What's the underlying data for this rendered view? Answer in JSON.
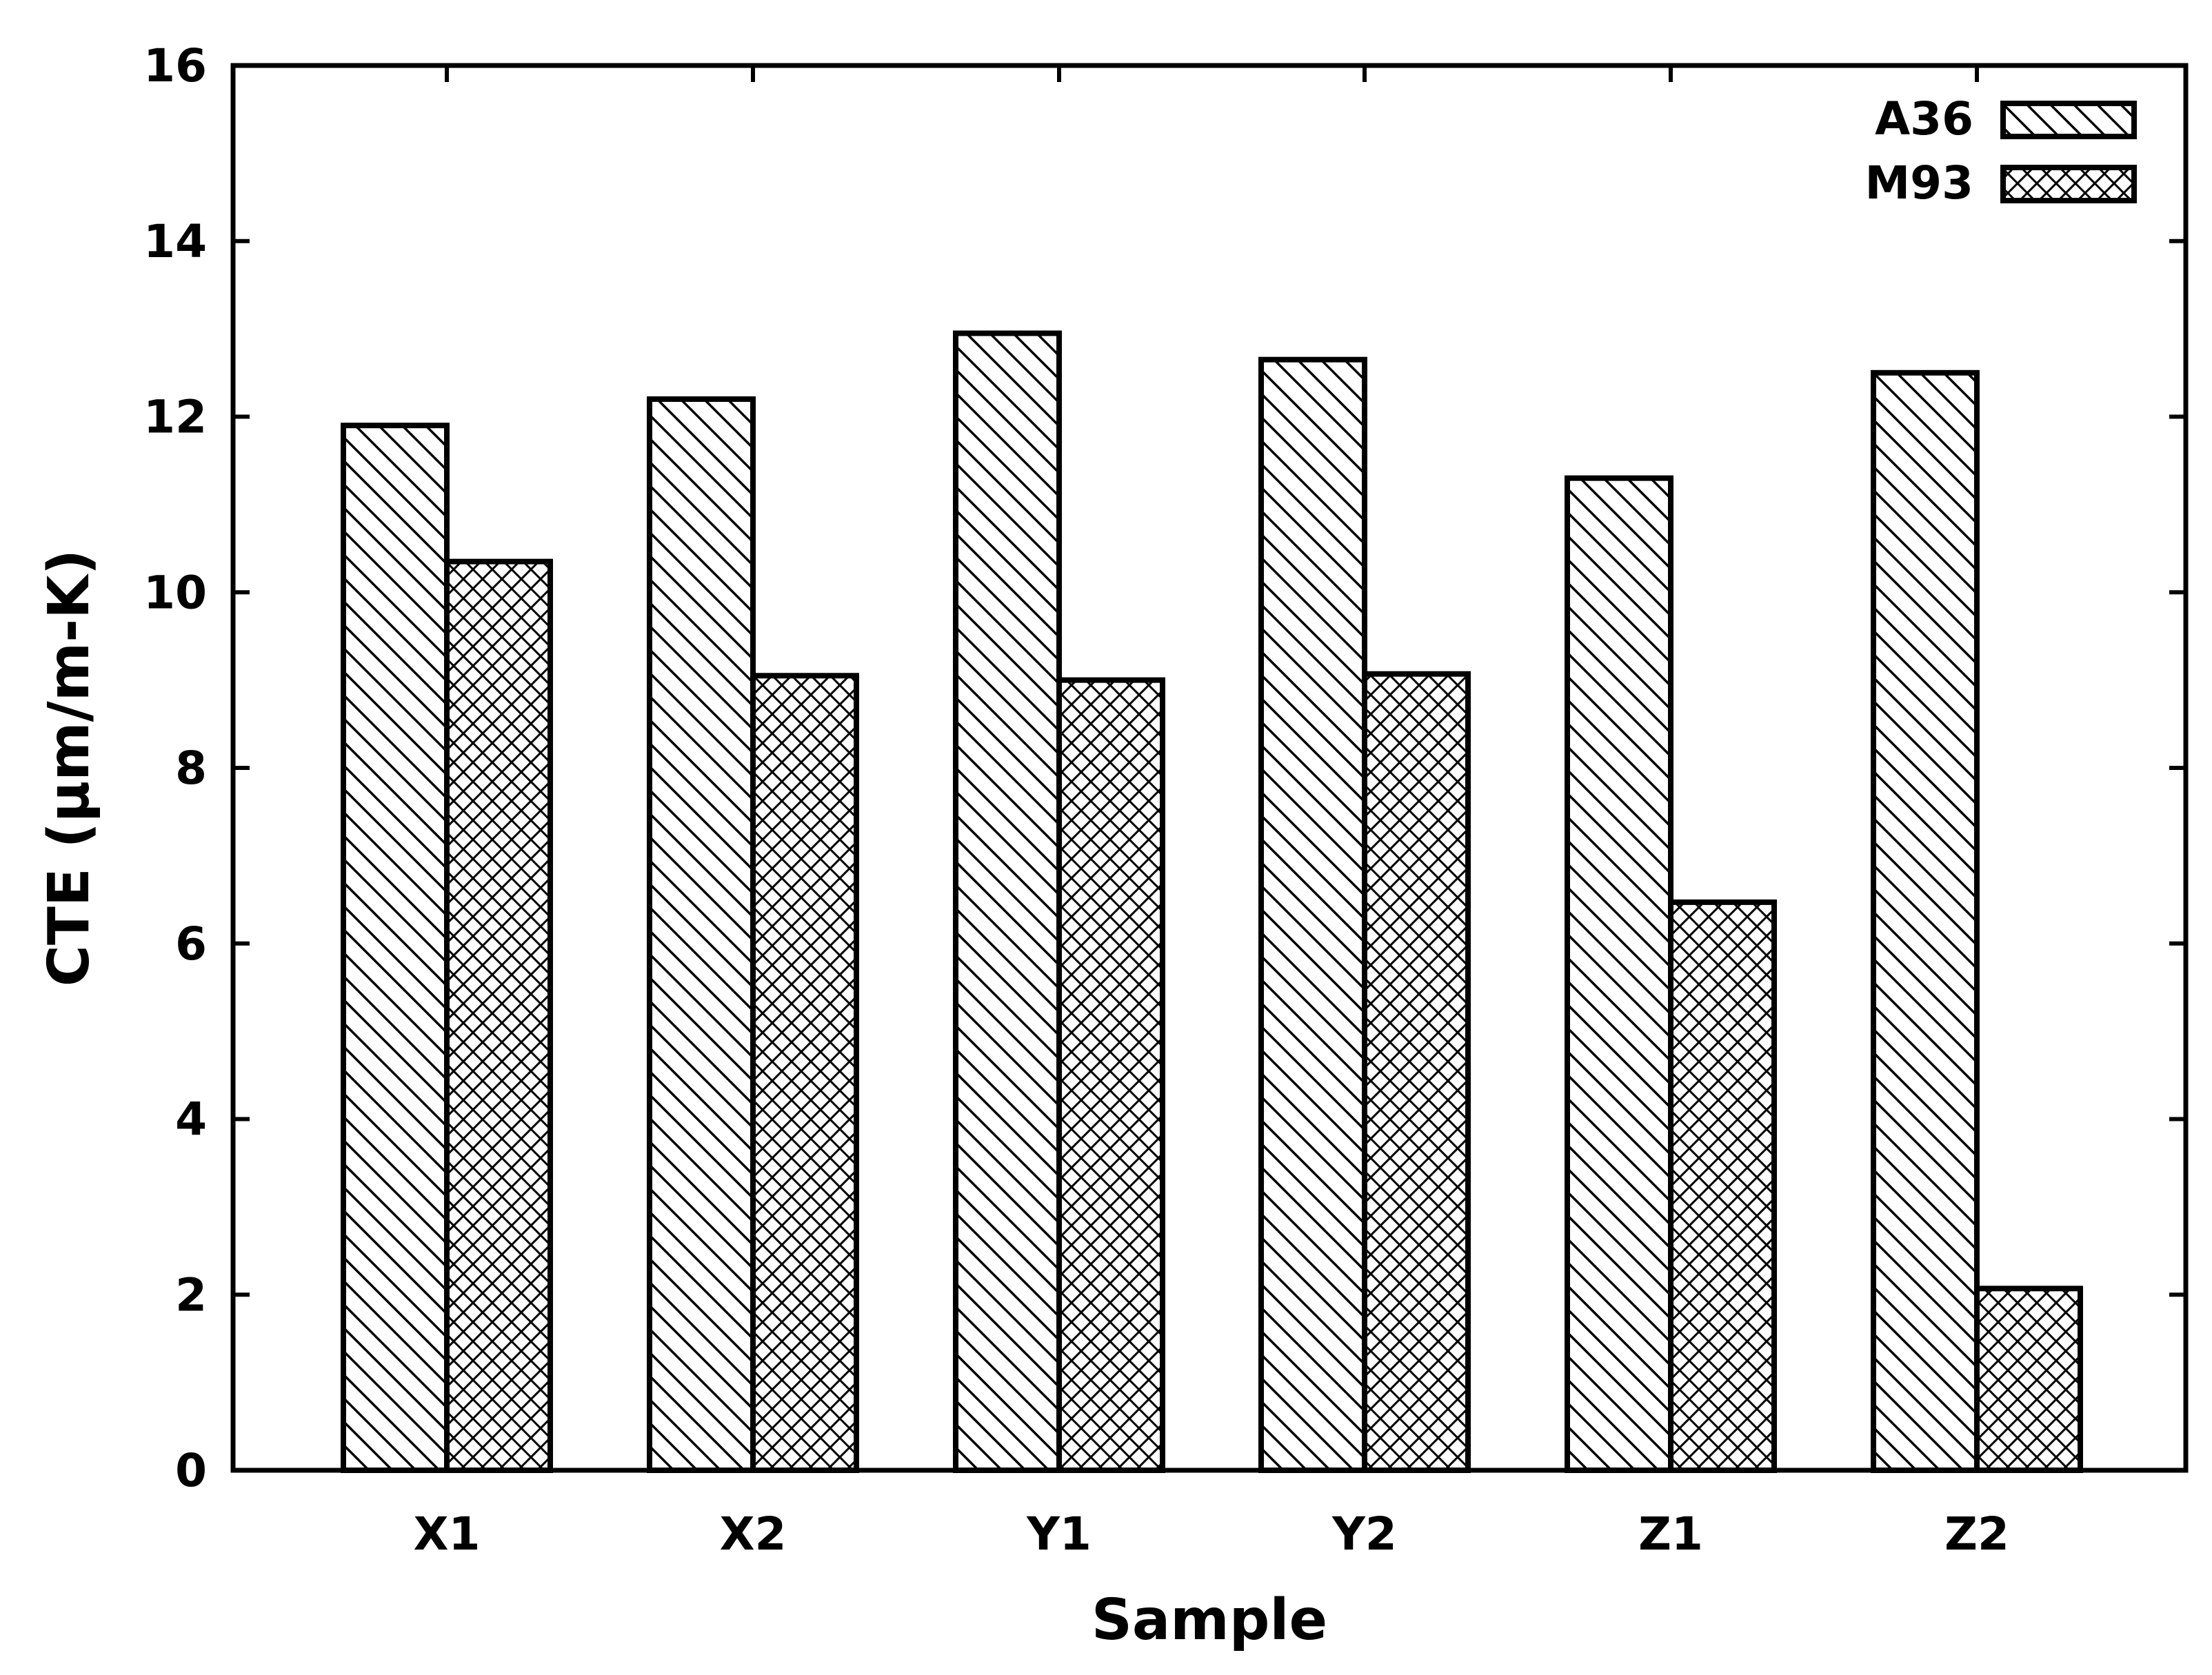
{
  "chart_data": {
    "type": "bar",
    "xlabel": "Sample",
    "ylabel": "CTE (μm/m-K)",
    "categories": [
      "X1",
      "X2",
      "Y1",
      "Y2",
      "Z1",
      "Z2"
    ],
    "ylim": [
      0,
      16
    ],
    "yticks": [
      0,
      2,
      4,
      6,
      8,
      10,
      12,
      14,
      16
    ],
    "grid": false,
    "legend_position": "top-right",
    "series": [
      {
        "name": "A36",
        "pattern": "diagonal-hatch",
        "values": [
          11.9,
          12.2,
          12.95,
          12.65,
          11.3,
          12.5
        ]
      },
      {
        "name": "M93",
        "pattern": "crosshatch",
        "values": [
          10.35,
          9.05,
          9.0,
          9.07,
          6.47,
          2.07
        ]
      }
    ],
    "colors": {
      "stroke": "#000000",
      "fill": "#ffffff"
    }
  }
}
